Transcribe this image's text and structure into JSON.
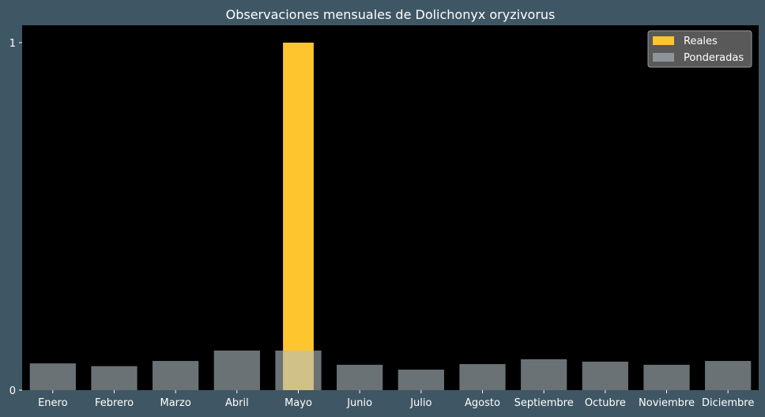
{
  "chart_data": {
    "type": "bar",
    "title": "Observaciones mensuales de Dolichonyx oryzivorus",
    "xlabel": "",
    "ylabel": "",
    "categories": [
      "Enero",
      "Febrero",
      "Marzo",
      "Abril",
      "Mayo",
      "Junio",
      "Julio",
      "Agosto",
      "Septiembre",
      "Octubre",
      "Noviembre",
      "Diciembre"
    ],
    "series": [
      {
        "name": "Reales",
        "color": "#ffc52e",
        "values": [
          0,
          0,
          0,
          0,
          1,
          0,
          0,
          0,
          0,
          0,
          0,
          0
        ]
      },
      {
        "name": "Ponderadas",
        "color": "#b0bec5",
        "opacity": 0.6,
        "values": [
          0.077,
          0.069,
          0.084,
          0.114,
          0.114,
          0.073,
          0.059,
          0.075,
          0.089,
          0.082,
          0.073,
          0.084
        ]
      }
    ],
    "ylim": [
      0,
      1.05
    ],
    "yticks": [
      0,
      1
    ],
    "ytick_labels": [
      "0",
      "1"
    ],
    "grid": false,
    "legend_position": "top-right",
    "plot_background": "#000000",
    "figure_background": "#3f5764"
  }
}
